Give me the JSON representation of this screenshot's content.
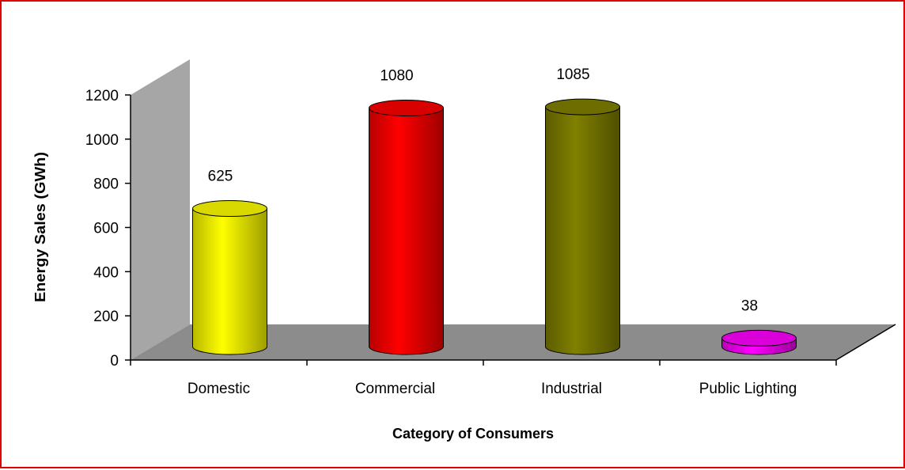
{
  "chart_data": {
    "type": "bar",
    "style": "3d-cylinder",
    "title": "",
    "xlabel": "Category of Consumers",
    "ylabel": "Energy Sales (GWh)",
    "ylim": [
      0,
      1200
    ],
    "yticks": [
      0,
      200,
      400,
      600,
      800,
      1000,
      1200
    ],
    "categories": [
      "Domestic",
      "Commercial",
      "Industrial",
      "Public Lighting"
    ],
    "values": [
      625,
      1080,
      1085,
      38
    ],
    "data_labels": [
      "625",
      "1080",
      "1085",
      "38"
    ],
    "colors": [
      "#ffff00",
      "#ff0000",
      "#808000",
      "#ff00ff"
    ],
    "grid": false,
    "legend": "none"
  }
}
